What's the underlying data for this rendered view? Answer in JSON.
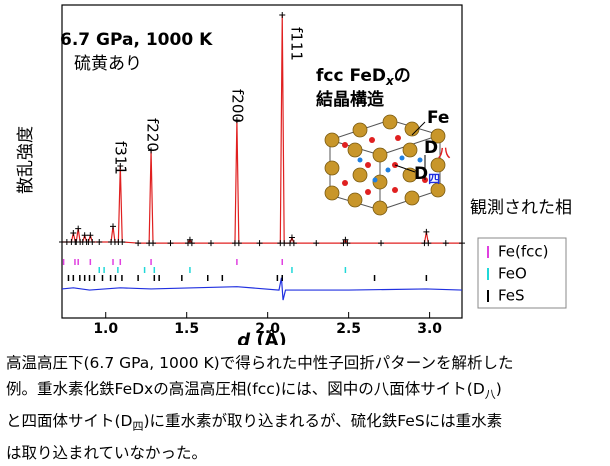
{
  "chart_data": {
    "type": "line",
    "annotations": [
      "6.7 GPa, 1000 K",
      "硫黄あり"
    ],
    "structure": {
      "title_parts": [
        "fcc FeD",
        "x",
        "の"
      ],
      "title_line2": "結晶構造",
      "labels": [
        {
          "text": "Fe"
        },
        {
          "text": "D",
          "sub": "八"
        },
        {
          "text": "D",
          "sub": "四"
        }
      ]
    },
    "peak_labels": [
      "f311",
      "f220",
      "f200",
      "f111"
    ],
    "xlabel": [
      "d",
      " (Å)"
    ],
    "ylabel": "散乱強度",
    "legend_title": "観測された相",
    "xlim": [
      0.73,
      3.2
    ],
    "ylim": [
      -33,
      107
    ],
    "xticks": [
      {
        "value": 1,
        "label": "1.0"
      },
      1.5,
      {
        "value": 2,
        "label": "2.0"
      },
      2.5,
      {
        "value": 3,
        "label": "3.0"
      }
    ],
    "series": [
      {
        "color": "#e02020",
        "marker_color": "#000000",
        "x": [
          0.73,
          0.76,
          0.788,
          0.8,
          0.812,
          0.818,
          0.83,
          0.842,
          0.858,
          0.87,
          0.882,
          0.893,
          0.905,
          0.917,
          0.96,
          1.033,
          1.045,
          1.057,
          1.078,
          1.09,
          1.102,
          1.2,
          1.268,
          1.28,
          1.292,
          1.4,
          1.508,
          1.52,
          1.532,
          1.65,
          1.798,
          1.81,
          1.822,
          1.95,
          2.078,
          2.09,
          2.102,
          2.138,
          2.15,
          2.162,
          2.3,
          2.468,
          2.48,
          2.492,
          2.7,
          2.968,
          2.98,
          2.992,
          3.1,
          3.2
        ],
        "values": [
          1,
          1,
          1,
          5,
          1,
          1,
          7,
          1,
          1,
          4,
          1,
          1,
          4,
          1,
          1,
          1,
          8,
          1,
          1,
          35,
          1,
          0.5,
          0.5,
          42,
          0.5,
          0.5,
          0.5,
          2,
          0.5,
          0.5,
          0.5,
          55.5,
          0.5,
          0.5,
          0.5,
          102.5,
          0.5,
          0.5,
          3,
          0.5,
          0.5,
          0.5,
          2,
          0.5,
          0.5,
          0.5,
          5.5,
          0.5,
          0.5,
          0.5
        ]
      },
      {
        "color": "#2030e0",
        "x": [
          0.73,
          0.8,
          0.9,
          1.09,
          1.28,
          1.81,
          2.07,
          2.085,
          2.095,
          2.11,
          2.5,
          2.98,
          3.2
        ],
        "values": [
          -20,
          -19.5,
          -20.5,
          -19.5,
          -20,
          -19,
          -20.5,
          -15,
          -25,
          -20.5,
          -20.5,
          -20,
          -20.5
        ]
      }
    ],
    "phases": [
      {
        "name": "Fe(fcc)",
        "color": "#e040e0",
        "positions": [
          0.74,
          0.81,
          0.83,
          0.905,
          1.045,
          1.09,
          1.28,
          1.81,
          2.09
        ]
      },
      {
        "name": "FeO",
        "color": "#20d8d8",
        "positions": [
          0.96,
          0.99,
          1.075,
          1.24,
          1.3,
          1.52,
          2.15,
          2.48
        ]
      },
      {
        "name": "FeS",
        "color": "#000000",
        "positions": [
          0.77,
          0.8,
          0.84,
          0.87,
          0.9,
          0.93,
          0.98,
          1.03,
          1.06,
          1.1,
          1.2,
          1.3,
          1.33,
          1.47,
          1.63,
          1.72,
          2.06,
          2.09,
          2.66,
          2.98
        ]
      }
    ]
  },
  "caption": [
    [
      "高温高圧下(6.7 GPa, 1000 K)で得られた中性子回折パターンを解析した"
    ],
    [
      "例。重水素化鉄FeDxの高温高圧相(fcc)には、図中の八面体サイト(D",
      "八",
      ")"
    ],
    [
      "と四面体サイト(D",
      "四",
      ")に重水素が取り込まれるが、硫化鉄FeSには重水素"
    ],
    [
      "は取り込まれていなかった。"
    ]
  ]
}
